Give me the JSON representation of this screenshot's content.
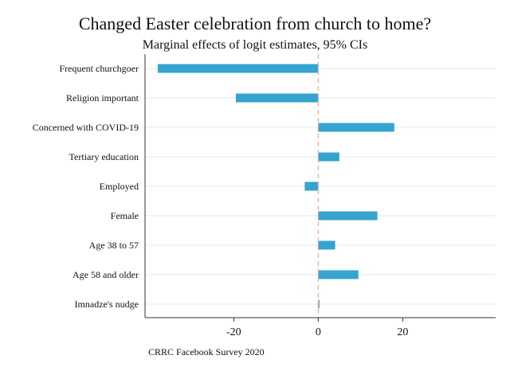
{
  "chart_data": {
    "type": "bar",
    "orientation": "horizontal",
    "title": "Changed Easter celebration from church to home?",
    "subtitle": "Marginal effects of logit estimates, 95% CIs",
    "categories": [
      "Frequent churchgoer",
      "Religion important",
      "Concerned with COVID-19",
      "Tertiary education",
      "Employed",
      "Female",
      "Age 38 to 57",
      "Age 58 and older",
      "Imnadze's nudge"
    ],
    "values": [
      -38,
      -19.5,
      18,
      5,
      -3.2,
      14,
      4,
      9.5,
      0.2
    ],
    "xlim": [
      -41,
      42
    ],
    "xticks": [
      -20,
      0,
      20
    ],
    "xtick_labels": [
      "-20",
      "0",
      "20"
    ],
    "reference_line": 0,
    "gridlines": "horizontal",
    "note": "CRRC Facebook Survey 2020",
    "colors": {
      "bar": "#35a4ce",
      "reference_line": "#f0a898",
      "gridline": "#e3e9ee",
      "axis": "#333333"
    }
  }
}
